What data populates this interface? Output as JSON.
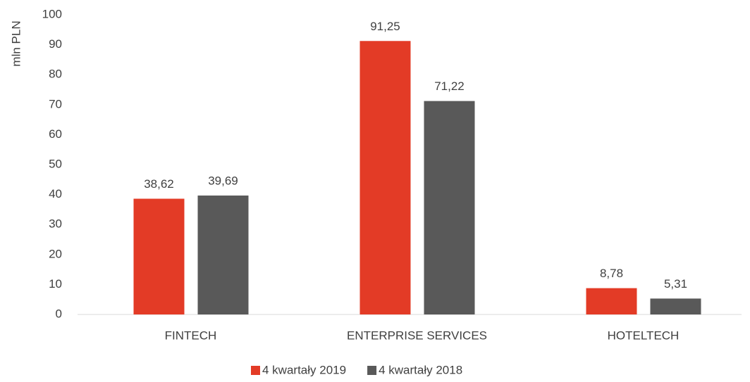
{
  "chart_data": {
    "type": "bar",
    "y_label": "mln  PLN",
    "categories": [
      "FINTECH",
      "ENTERPRISE SERVICES",
      "HOTELTECH"
    ],
    "series": [
      {
        "name": "4 kwartały 2019",
        "color": "#e33b26",
        "values": [
          38.62,
          91.25,
          8.78
        ],
        "value_labels": [
          "38,62",
          "91,25",
          "8,78"
        ]
      },
      {
        "name": "4 kwartały 2018",
        "color": "#595959",
        "values": [
          39.69,
          71.22,
          5.31
        ],
        "value_labels": [
          "39,69",
          "71,22",
          "5,31"
        ]
      }
    ],
    "ylim": [
      0,
      100
    ],
    "yticks": [
      0,
      10,
      20,
      30,
      40,
      50,
      60,
      70,
      80,
      90,
      100
    ],
    "grid": false,
    "legend": "bottom"
  }
}
